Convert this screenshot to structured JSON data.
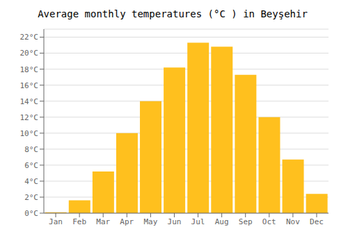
{
  "chart_data": {
    "type": "bar",
    "title": "Average monthly temperatures (°C ) in Beyşehir",
    "categories": [
      "Jan",
      "Feb",
      "Mar",
      "Apr",
      "May",
      "Jun",
      "Jul",
      "Aug",
      "Sep",
      "Oct",
      "Nov",
      "Dec"
    ],
    "values": [
      0.1,
      1.6,
      5.2,
      10.0,
      14.0,
      18.2,
      21.3,
      20.8,
      17.3,
      12.0,
      6.7,
      2.4
    ],
    "color": "#FFC01E",
    "ylim": [
      0,
      23
    ],
    "yticks": [
      {
        "value": 0,
        "label": "0°C"
      },
      {
        "value": 2,
        "label": "2°C"
      },
      {
        "value": 4,
        "label": "4°C"
      },
      {
        "value": 6,
        "label": "6°C"
      },
      {
        "value": 8,
        "label": "8°C"
      },
      {
        "value": 10,
        "label": "10°C"
      },
      {
        "value": 12,
        "label": "12°C"
      },
      {
        "value": 14,
        "label": "14°C"
      },
      {
        "value": 16,
        "label": "16°C"
      },
      {
        "value": 18,
        "label": "18°C"
      },
      {
        "value": 20,
        "label": "20°C"
      },
      {
        "value": 22,
        "label": "22°C"
      }
    ],
    "grid": true
  }
}
